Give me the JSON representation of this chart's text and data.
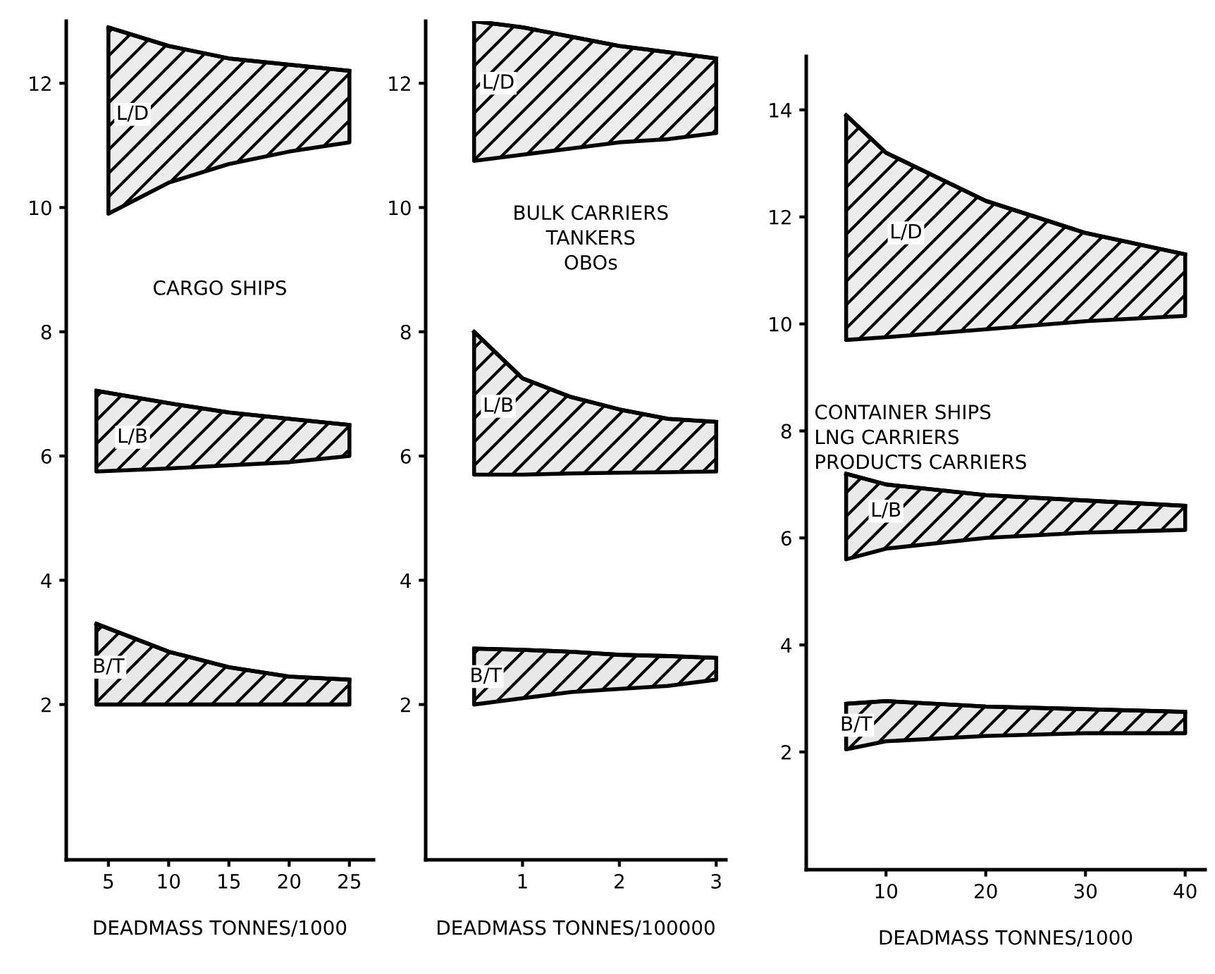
{
  "chart_data": [
    {
      "type": "line",
      "title": "CARGO SHIPS",
      "xlabel": "DEADMASS TONNES/1000",
      "xlim": [
        1.5,
        27
      ],
      "ylim": [
        -0.5,
        13
      ],
      "xticks": [
        5,
        10,
        15,
        20,
        25
      ],
      "yticks": [
        2,
        4,
        6,
        8,
        10,
        12
      ],
      "grid": false,
      "legend": false,
      "series": [
        {
          "x": [
            5,
            10,
            15,
            20,
            25
          ],
          "color": "#000000",
          "lower": [
            9.9,
            10.4,
            10.7,
            10.9,
            11.05
          ],
          "upper": [
            12.9,
            12.6,
            12.4,
            12.3,
            12.2
          ],
          "values": [
            12.9,
            12.6,
            12.4,
            12.3,
            12.2
          ]
        },
        {
          "x": [
            4,
            10,
            15,
            20,
            25
          ],
          "color": "#000000",
          "lower": [
            5.75,
            5.8,
            5.85,
            5.9,
            6.0
          ],
          "upper": [
            7.05,
            6.85,
            6.7,
            6.6,
            6.5
          ],
          "values": [
            7.05,
            6.85,
            6.7,
            6.6,
            6.5
          ]
        },
        {
          "x": [
            4,
            10,
            15,
            20,
            25
          ],
          "color": "#000000",
          "lower": [
            2.0,
            2.0,
            2.0,
            2.0,
            2.0
          ],
          "upper": [
            3.3,
            2.85,
            2.6,
            2.45,
            2.4
          ],
          "values": [
            3.3,
            2.85,
            2.6,
            2.45,
            2.4
          ]
        }
      ],
      "annotations": [
        {
          "text": "L/D",
          "x": 7,
          "y": 11.5
        },
        {
          "text": "L/B",
          "x": 7,
          "y": 6.3
        },
        {
          "text": "B/T",
          "x": 5,
          "y": 2.6
        }
      ]
    },
    {
      "type": "line",
      "title": "BULK CARRIERS\nTANKERS\nOBOs",
      "xlabel": "DEADMASS TONNES/100000",
      "xlim": [
        0,
        3.1
      ],
      "ylim": [
        -0.5,
        13
      ],
      "xticks": [
        1,
        2,
        3
      ],
      "yticks": [
        2,
        4,
        6,
        8,
        10,
        12
      ],
      "grid": false,
      "legend": false,
      "series": [
        {
          "x": [
            0.5,
            1,
            1.5,
            2,
            2.5,
            3
          ],
          "color": "#000000",
          "lower": [
            10.75,
            10.85,
            10.95,
            11.05,
            11.1,
            11.2
          ],
          "upper": [
            13.0,
            12.9,
            12.75,
            12.6,
            12.5,
            12.4
          ],
          "values": [
            13.0,
            12.9,
            12.75,
            12.6,
            12.5,
            12.4
          ]
        },
        {
          "x": [
            0.5,
            1,
            1.5,
            2,
            2.5,
            3
          ],
          "color": "#000000",
          "lower": [
            5.7,
            5.7,
            5.72,
            5.73,
            5.74,
            5.75
          ],
          "upper": [
            8.0,
            7.25,
            6.95,
            6.75,
            6.6,
            6.55
          ],
          "values": [
            8.0,
            7.25,
            6.95,
            6.75,
            6.6,
            6.55
          ]
        },
        {
          "x": [
            0.5,
            1,
            1.5,
            2,
            2.5,
            3
          ],
          "color": "#000000",
          "lower": [
            2.0,
            2.1,
            2.2,
            2.25,
            2.3,
            2.4
          ],
          "upper": [
            2.9,
            2.88,
            2.85,
            2.8,
            2.78,
            2.75
          ],
          "values": [
            2.9,
            2.88,
            2.85,
            2.8,
            2.78,
            2.75
          ]
        }
      ],
      "annotations": [
        {
          "text": "L/D",
          "x": 0.75,
          "y": 12.0
        },
        {
          "text": "L/B",
          "x": 0.75,
          "y": 6.8
        },
        {
          "text": "B/T",
          "x": 0.62,
          "y": 2.45
        }
      ]
    },
    {
      "type": "line",
      "title": "CONTAINER SHIPS\nLNG CARRIERS\nPRODUCTS CARRIERS",
      "xlabel": "DEADMASS TONNES/1000",
      "xlim": [
        2,
        42
      ],
      "ylim": [
        -0.2,
        15
      ],
      "xticks": [
        10,
        20,
        30,
        40
      ],
      "yticks": [
        2,
        4,
        6,
        8,
        10,
        12,
        14
      ],
      "grid": false,
      "legend": false,
      "series": [
        {
          "x": [
            6,
            10,
            20,
            30,
            40
          ],
          "color": "#000000",
          "lower": [
            9.7,
            9.75,
            9.9,
            10.05,
            10.15
          ],
          "upper": [
            13.9,
            13.2,
            12.3,
            11.7,
            11.3
          ],
          "values": [
            13.9,
            13.2,
            12.3,
            11.7,
            11.3
          ]
        },
        {
          "x": [
            6,
            10,
            20,
            30,
            40
          ],
          "color": "#000000",
          "lower": [
            5.6,
            5.8,
            6.0,
            6.1,
            6.15
          ],
          "upper": [
            7.2,
            7.0,
            6.8,
            6.7,
            6.6
          ],
          "values": [
            7.2,
            7.0,
            6.8,
            6.7,
            6.6
          ]
        },
        {
          "x": [
            6,
            10,
            20,
            30,
            40
          ],
          "color": "#000000",
          "lower": [
            2.05,
            2.2,
            2.3,
            2.35,
            2.35
          ],
          "upper": [
            2.9,
            2.95,
            2.85,
            2.8,
            2.75
          ],
          "values": [
            2.9,
            2.95,
            2.85,
            2.8,
            2.75
          ]
        }
      ],
      "annotations": [
        {
          "text": "L/D",
          "x": 12,
          "y": 11.7
        },
        {
          "text": "L/B",
          "x": 10,
          "y": 6.5
        },
        {
          "text": "B/T",
          "x": 7,
          "y": 2.5
        }
      ]
    }
  ]
}
